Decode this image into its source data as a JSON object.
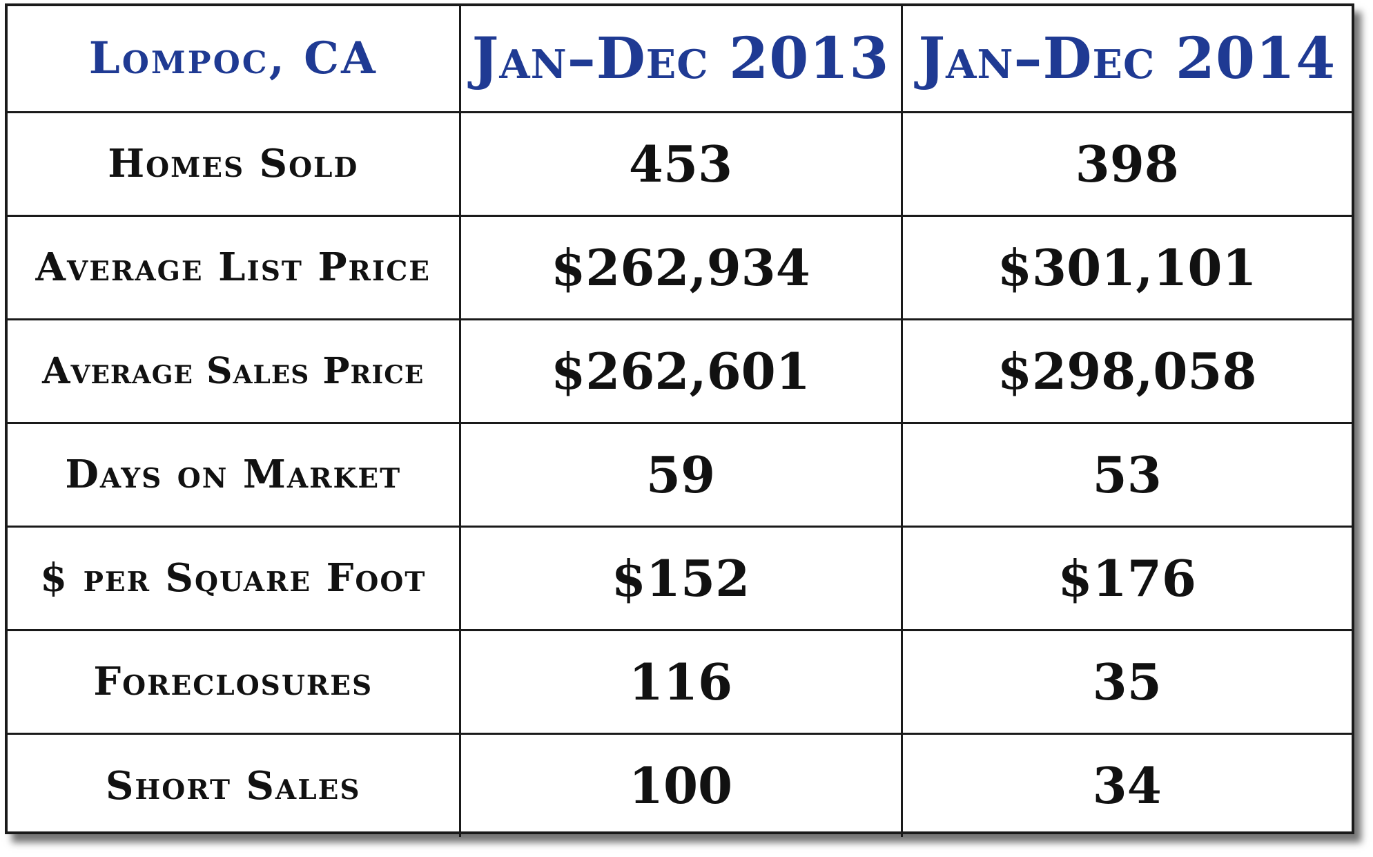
{
  "table": {
    "header": {
      "city": "Lompoc, CA",
      "period_1": "Jan–Dec 2013",
      "period_2": "Jan–Dec 2014"
    },
    "rows": [
      {
        "label": "Homes Sold",
        "v2013": "453",
        "v2014": "398"
      },
      {
        "label": "Average List Price",
        "v2013": "$262,934",
        "v2014": "$301,101"
      },
      {
        "label": "Average Sales Price",
        "v2013": "$262,601",
        "v2014": "$298,058"
      },
      {
        "label": "Days on Market",
        "v2013": "59",
        "v2014": "53"
      },
      {
        "label": "$ per Square Foot",
        "v2013": "$152",
        "v2014": "$176"
      },
      {
        "label": "Foreclosures",
        "v2013": "116",
        "v2014": "35"
      },
      {
        "label": "Short Sales",
        "v2013": "100",
        "v2014": "34"
      }
    ]
  },
  "colors": {
    "header_text": "#1f3a93",
    "body_text": "#111111",
    "grid": "#1a1a1a",
    "background": "#ffffff"
  }
}
